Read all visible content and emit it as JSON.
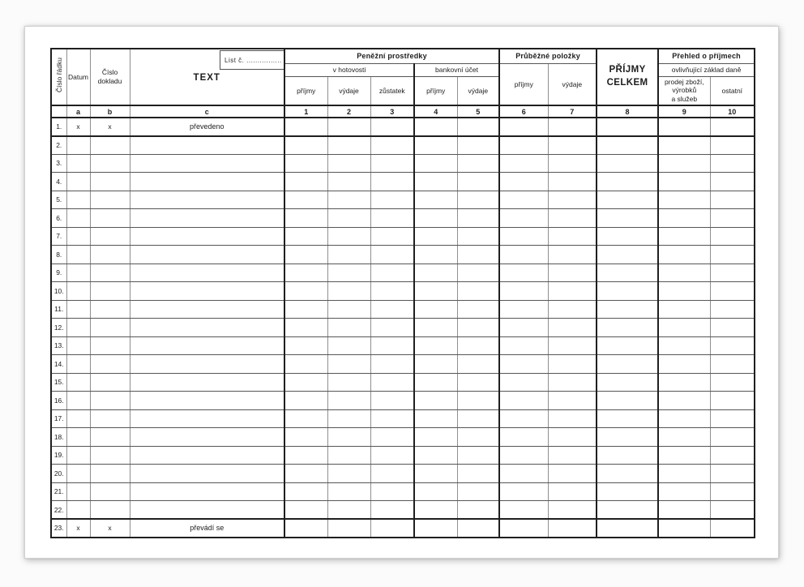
{
  "form": {
    "list_label": "List č. ................",
    "row_header": {
      "cislo_radku": "Číslo řádku",
      "datum": "Datum",
      "cislo_dokladu": "Číslo dokladu",
      "text": "TEXT"
    },
    "groups": {
      "penezni_prostredky": {
        "title": "Peněžní prostředky",
        "v_hotovosti": {
          "title": "v hotovosti",
          "cols": [
            "příjmy",
            "výdaje",
            "zůstatek"
          ]
        },
        "bankovni_ucet": {
          "title": "bankovní účet",
          "cols": [
            "příjmy",
            "výdaje"
          ]
        }
      },
      "prubezne_polozky": {
        "title": "Průběžné položky",
        "cols": [
          "příjmy",
          "výdaje"
        ]
      },
      "prijmy_celkem": "PŘÍJMY\nCELKEM",
      "prehled_o_prijmech": {
        "title": "Přehled o příjmech",
        "subtitle": "ovlivňující základ daně",
        "cols": [
          "prodej zboží,\nvýrobků\na služeb",
          "ostatní"
        ]
      }
    },
    "code_row": [
      "",
      "a",
      "b",
      "c",
      "1",
      "2",
      "3",
      "4",
      "5",
      "6",
      "7",
      "8",
      "9",
      "10"
    ],
    "rows": [
      {
        "num": "1.",
        "datum": "x",
        "doklad": "x",
        "text": "převedeno"
      },
      {
        "num": "2.",
        "datum": "",
        "doklad": "",
        "text": ""
      },
      {
        "num": "3.",
        "datum": "",
        "doklad": "",
        "text": ""
      },
      {
        "num": "4.",
        "datum": "",
        "doklad": "",
        "text": ""
      },
      {
        "num": "5.",
        "datum": "",
        "doklad": "",
        "text": ""
      },
      {
        "num": "6.",
        "datum": "",
        "doklad": "",
        "text": ""
      },
      {
        "num": "7.",
        "datum": "",
        "doklad": "",
        "text": ""
      },
      {
        "num": "8.",
        "datum": "",
        "doklad": "",
        "text": ""
      },
      {
        "num": "9.",
        "datum": "",
        "doklad": "",
        "text": ""
      },
      {
        "num": "10.",
        "datum": "",
        "doklad": "",
        "text": ""
      },
      {
        "num": "11.",
        "datum": "",
        "doklad": "",
        "text": ""
      },
      {
        "num": "12.",
        "datum": "",
        "doklad": "",
        "text": ""
      },
      {
        "num": "13.",
        "datum": "",
        "doklad": "",
        "text": ""
      },
      {
        "num": "14.",
        "datum": "",
        "doklad": "",
        "text": ""
      },
      {
        "num": "15.",
        "datum": "",
        "doklad": "",
        "text": ""
      },
      {
        "num": "16.",
        "datum": "",
        "doklad": "",
        "text": ""
      },
      {
        "num": "17.",
        "datum": "",
        "doklad": "",
        "text": ""
      },
      {
        "num": "18.",
        "datum": "",
        "doklad": "",
        "text": ""
      },
      {
        "num": "19.",
        "datum": "",
        "doklad": "",
        "text": ""
      },
      {
        "num": "20.",
        "datum": "",
        "doklad": "",
        "text": ""
      },
      {
        "num": "21.",
        "datum": "",
        "doklad": "",
        "text": ""
      },
      {
        "num": "22.",
        "datum": "",
        "doklad": "",
        "text": ""
      },
      {
        "num": "23.",
        "datum": "x",
        "doklad": "x",
        "text": "převádí se"
      }
    ]
  }
}
